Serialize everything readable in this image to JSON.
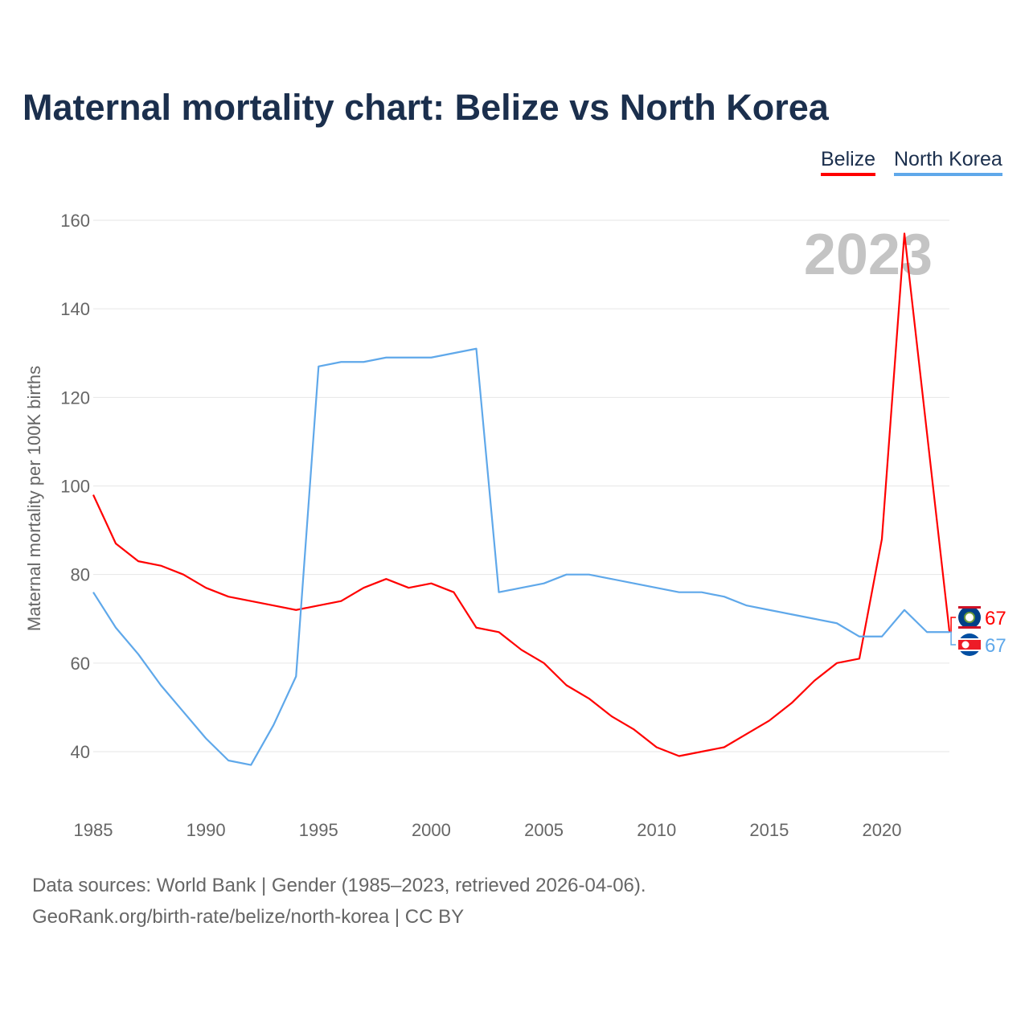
{
  "chart_data": {
    "type": "line",
    "title": "Maternal mortality chart: Belize vs North Korea",
    "xlabel": "",
    "ylabel": "Maternal mortality per 100K births",
    "xlim": [
      1985,
      2023
    ],
    "ylim": [
      28,
      166
    ],
    "yticks": [
      40,
      60,
      80,
      100,
      120,
      140,
      160
    ],
    "xticks": [
      1985,
      1990,
      1995,
      2000,
      2005,
      2010,
      2015,
      2020
    ],
    "grid": true,
    "legend_position": "top-right",
    "year_watermark": "2023",
    "x": [
      1985,
      1986,
      1987,
      1988,
      1989,
      1990,
      1991,
      1992,
      1993,
      1994,
      1995,
      1996,
      1997,
      1998,
      1999,
      2000,
      2001,
      2002,
      2003,
      2004,
      2005,
      2006,
      2007,
      2008,
      2009,
      2010,
      2011,
      2012,
      2013,
      2014,
      2015,
      2016,
      2017,
      2018,
      2019,
      2020,
      2021,
      2022,
      2023
    ],
    "series": [
      {
        "name": "Belize",
        "color": "#ff0000",
        "end_label": "67",
        "values": [
          98,
          87,
          83,
          82,
          80,
          77,
          75,
          74,
          73,
          72,
          73,
          74,
          77,
          79,
          77,
          78,
          76,
          68,
          67,
          63,
          60,
          55,
          52,
          48,
          45,
          41,
          39,
          40,
          41,
          44,
          47,
          51,
          56,
          60,
          61,
          88,
          157,
          112,
          67
        ]
      },
      {
        "name": "North Korea",
        "color": "#5fa8ea",
        "end_label": "67",
        "values": [
          76,
          68,
          62,
          55,
          49,
          43,
          38,
          37,
          46,
          57,
          127,
          128,
          128,
          129,
          129,
          129,
          130,
          131,
          76,
          77,
          78,
          80,
          80,
          79,
          78,
          77,
          76,
          76,
          75,
          73,
          72,
          71,
          70,
          69,
          66,
          66,
          72,
          67,
          67
        ]
      }
    ]
  },
  "footer": {
    "line1": "Data sources: World Bank | Gender (1985–2023, retrieved 2026-04-06).",
    "line2": "GeoRank.org/birth-rate/belize/north-korea | CC BY"
  }
}
